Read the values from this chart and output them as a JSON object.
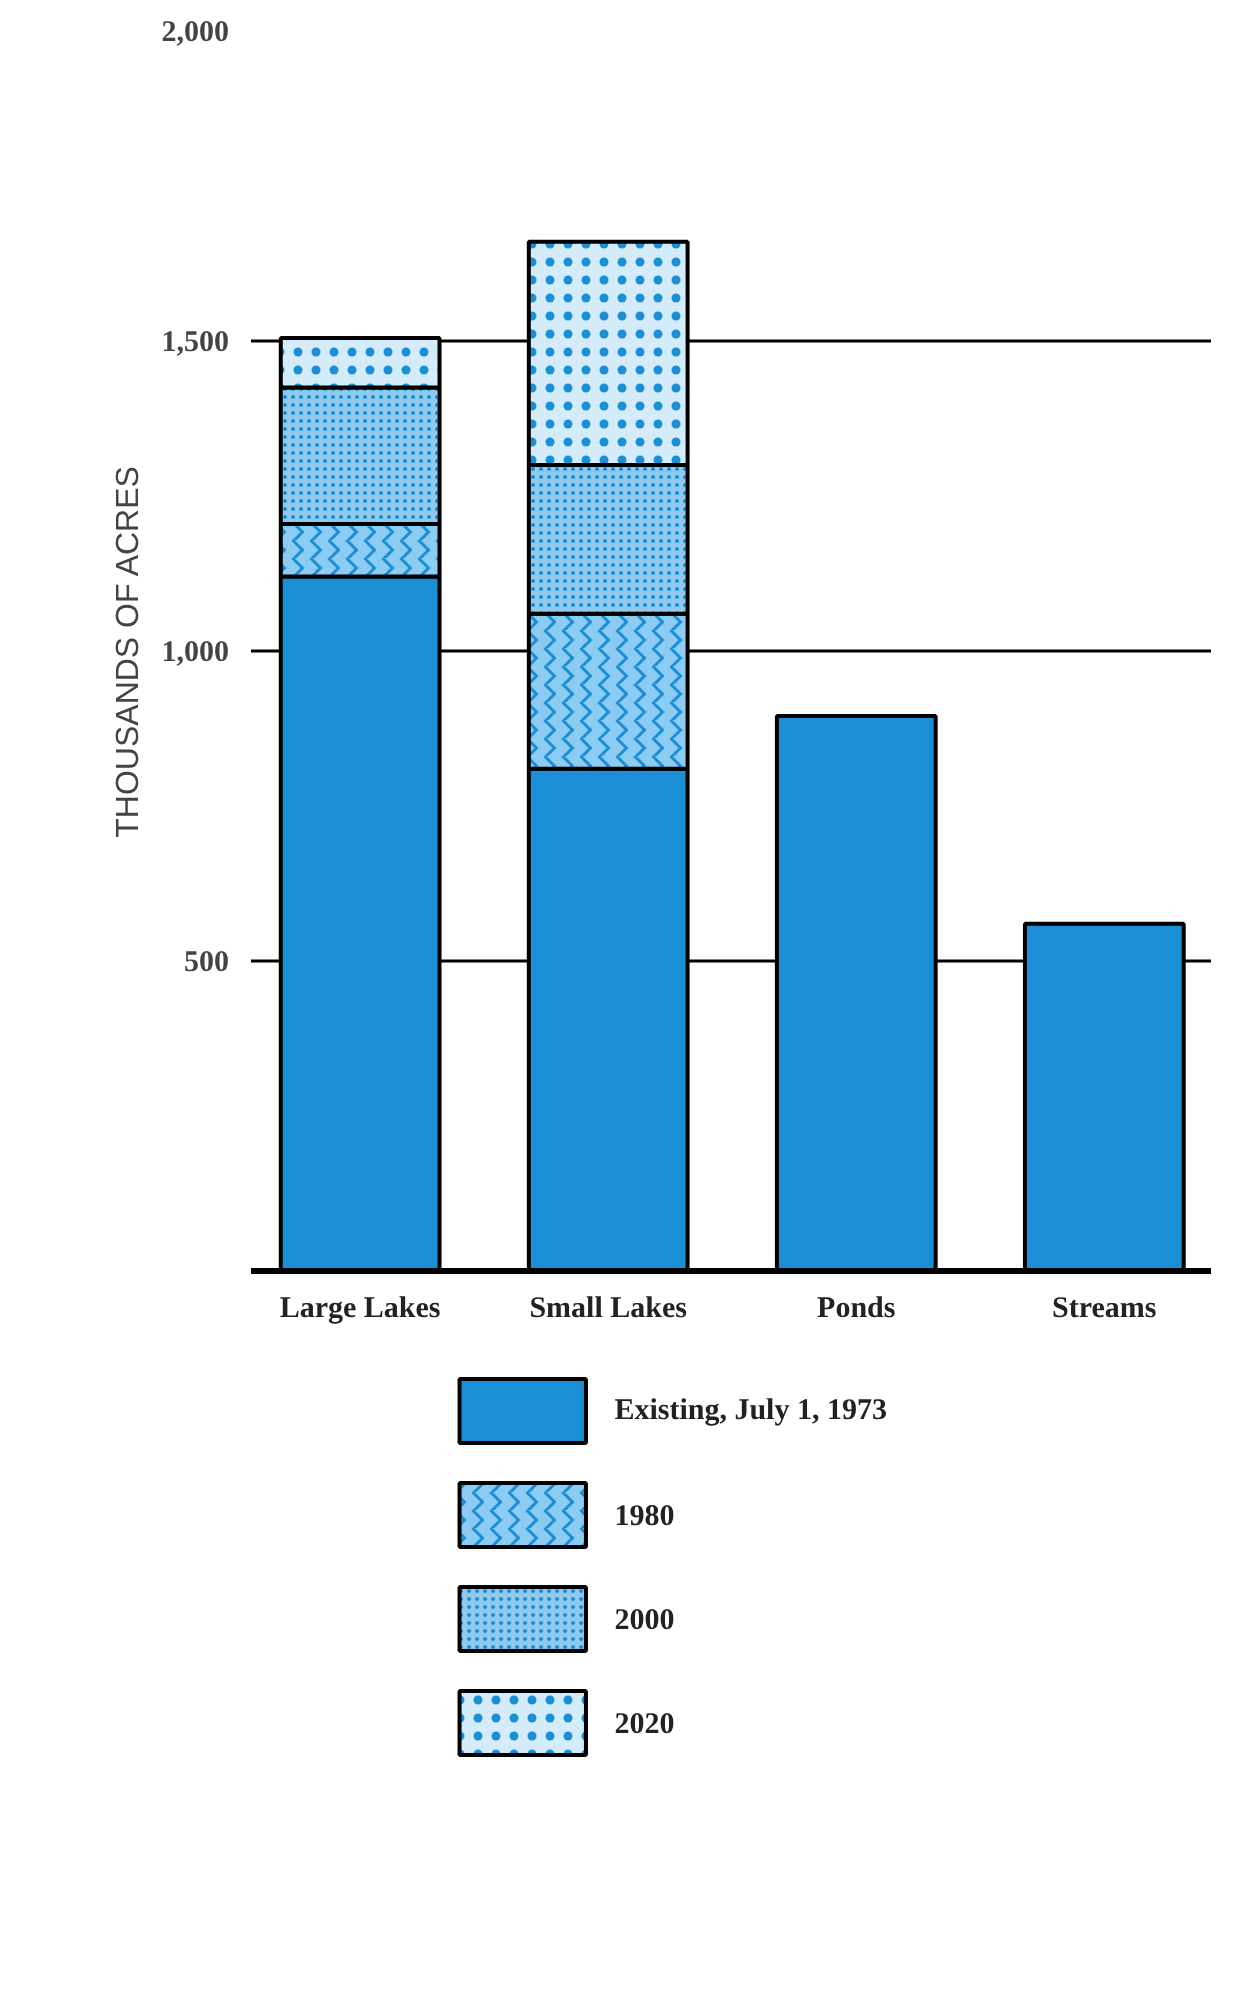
{
  "chart_data": {
    "type": "bar",
    "stacked": true,
    "ylabel": "THOUSANDS OF ACRES",
    "categories": [
      "Large Lakes",
      "Small Lakes",
      "Ponds",
      "Streams"
    ],
    "series": [
      {
        "name": "Existing, July 1, 1973",
        "color": "#1a8fd6",
        "values": [
          1120,
          810,
          895,
          560
        ]
      },
      {
        "name": "1980",
        "color": "#8ccbf2",
        "values": [
          85,
          250,
          null,
          null
        ]
      },
      {
        "name": "2000",
        "color": "#8fcaee",
        "values": [
          220,
          240,
          null,
          null
        ]
      },
      {
        "name": "2020",
        "color": "#d4ecfa",
        "values": [
          80,
          360,
          null,
          null
        ]
      }
    ],
    "ylim": [
      0,
      2000
    ],
    "yticks": [
      {
        "value": 500,
        "label": "500"
      },
      {
        "value": 1000,
        "label": "1,000"
      },
      {
        "value": 1500,
        "label": "1,500"
      },
      {
        "value": 2000,
        "label": "2,000"
      }
    ],
    "grid": "y",
    "legend": "bottom"
  }
}
